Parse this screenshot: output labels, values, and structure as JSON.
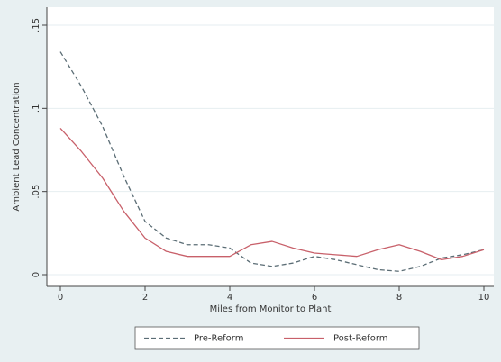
{
  "chart_data": {
    "type": "line",
    "x": [
      0,
      0.5,
      1,
      1.5,
      2,
      2.5,
      3,
      3.5,
      4,
      4.5,
      5,
      5.5,
      6,
      6.5,
      7,
      7.5,
      8,
      8.5,
      9,
      9.5,
      10
    ],
    "series": [
      {
        "name": "Pre-Reform",
        "color": "#5b6d75",
        "dashed": true,
        "values": [
          0.134,
          0.113,
          0.089,
          0.059,
          0.032,
          0.022,
          0.018,
          0.018,
          0.016,
          0.007,
          0.005,
          0.007,
          0.011,
          0.009,
          0.006,
          0.003,
          0.002,
          0.005,
          0.01,
          0.012,
          0.015
        ]
      },
      {
        "name": "Post-Reform",
        "color": "#c8606a",
        "dashed": false,
        "values": [
          0.088,
          0.074,
          0.058,
          0.038,
          0.022,
          0.014,
          0.011,
          0.011,
          0.011,
          0.018,
          0.02,
          0.016,
          0.013,
          0.012,
          0.011,
          0.015,
          0.018,
          0.014,
          0.009,
          0.011,
          0.015
        ]
      }
    ],
    "x_label": "Miles from Monitor to Plant",
    "y_label": "Ambient Lead Concentration",
    "xlim": [
      0,
      10
    ],
    "xticks": [
      0,
      2,
      4,
      6,
      8,
      10
    ],
    "ylim": [
      0,
      0.15
    ],
    "yticks": [
      0,
      {
        "value": 0.05,
        "label": ".05"
      },
      {
        "value": 0.1,
        "label": ".1"
      },
      {
        "value": 0.15,
        "label": ".15"
      }
    ],
    "grid": true,
    "legend": "bottom"
  }
}
